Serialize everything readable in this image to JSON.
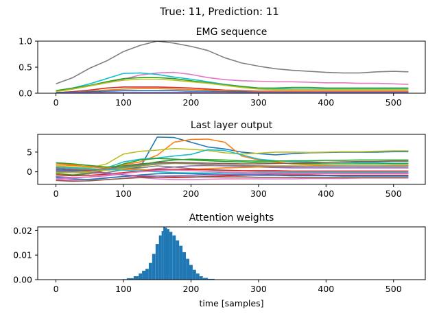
{
  "figure": {
    "suptitle": "True: 11, Prediction: 11",
    "xlabel": "time [samples]"
  },
  "chart_data": [
    {
      "type": "line",
      "title": "EMG sequence",
      "xlabel": "",
      "ylabel": "",
      "xlim": [
        -27,
        547
      ],
      "ylim": [
        0,
        1.0
      ],
      "xticks": [
        0,
        100,
        200,
        300,
        400,
        500
      ],
      "yticks": [
        0,
        0.5,
        1.0
      ],
      "ytick_labels": [
        "0.0",
        "0.5",
        "1.0"
      ],
      "grid": false,
      "x": [
        0,
        25,
        50,
        75,
        100,
        125,
        150,
        175,
        200,
        225,
        250,
        275,
        300,
        325,
        350,
        375,
        400,
        425,
        450,
        475,
        500,
        522
      ],
      "series": [
        {
          "color": "#7f7f7f",
          "values": [
            0.18,
            0.3,
            0.48,
            0.62,
            0.8,
            0.92,
            1.0,
            0.96,
            0.9,
            0.82,
            0.68,
            0.58,
            0.52,
            0.47,
            0.44,
            0.42,
            0.4,
            0.39,
            0.39,
            0.41,
            0.42,
            0.41
          ]
        },
        {
          "color": "#e377c2",
          "values": [
            0.03,
            0.08,
            0.14,
            0.2,
            0.27,
            0.35,
            0.39,
            0.4,
            0.36,
            0.3,
            0.26,
            0.24,
            0.23,
            0.22,
            0.22,
            0.21,
            0.2,
            0.2,
            0.19,
            0.19,
            0.18,
            0.17
          ]
        },
        {
          "color": "#17becf",
          "values": [
            0.04,
            0.1,
            0.18,
            0.28,
            0.38,
            0.39,
            0.36,
            0.31,
            0.27,
            0.22,
            0.17,
            0.13,
            0.1,
            0.09,
            0.08,
            0.08,
            0.08,
            0.08,
            0.08,
            0.08,
            0.08,
            0.08
          ]
        },
        {
          "color": "#2ca02c",
          "values": [
            0.05,
            0.1,
            0.15,
            0.22,
            0.28,
            0.3,
            0.3,
            0.28,
            0.24,
            0.2,
            0.16,
            0.13,
            0.1,
            0.1,
            0.11,
            0.11,
            0.1,
            0.1,
            0.1,
            0.1,
            0.1,
            0.1
          ]
        },
        {
          "color": "#bcbd22",
          "values": [
            0.03,
            0.08,
            0.14,
            0.2,
            0.25,
            0.27,
            0.27,
            0.25,
            0.22,
            0.19,
            0.15,
            0.11,
            0.08,
            0.07,
            0.07,
            0.07,
            0.07,
            0.07,
            0.07,
            0.07,
            0.07,
            0.07
          ]
        },
        {
          "color": "#d62728",
          "values": [
            0.01,
            0.03,
            0.06,
            0.1,
            0.12,
            0.12,
            0.12,
            0.11,
            0.1,
            0.08,
            0.06,
            0.05,
            0.04,
            0.04,
            0.04,
            0.04,
            0.04,
            0.04,
            0.04,
            0.04,
            0.04,
            0.04
          ]
        },
        {
          "color": "#ff7f0e",
          "values": [
            0.01,
            0.02,
            0.04,
            0.06,
            0.08,
            0.09,
            0.09,
            0.08,
            0.07,
            0.06,
            0.05,
            0.04,
            0.03,
            0.03,
            0.03,
            0.03,
            0.03,
            0.03,
            0.03,
            0.03,
            0.03,
            0.03
          ]
        },
        {
          "color": "#1f77b4",
          "values": [
            0.01,
            0.02,
            0.03,
            0.04,
            0.05,
            0.05,
            0.05,
            0.05,
            0.04,
            0.04,
            0.03,
            0.03,
            0.02,
            0.02,
            0.02,
            0.02,
            0.02,
            0.02,
            0.02,
            0.02,
            0.02,
            0.02
          ]
        },
        {
          "color": "#9467bd",
          "values": [
            0.0,
            0.01,
            0.01,
            0.02,
            0.02,
            0.02,
            0.02,
            0.02,
            0.02,
            0.02,
            0.02,
            0.01,
            0.01,
            0.01,
            0.01,
            0.01,
            0.01,
            0.01,
            0.01,
            0.01,
            0.01,
            0.01
          ]
        }
      ]
    },
    {
      "type": "line",
      "title": "Last layer output",
      "xlabel": "",
      "ylabel": "",
      "xlim": [
        -27,
        547
      ],
      "ylim": [
        -3.2,
        9.5
      ],
      "xticks": [
        0,
        100,
        200,
        300,
        400,
        500
      ],
      "yticks": [
        0,
        5
      ],
      "ytick_labels": [
        "0",
        "5"
      ],
      "grid": false,
      "x": [
        0,
        25,
        50,
        75,
        100,
        125,
        150,
        175,
        200,
        225,
        250,
        275,
        300,
        325,
        350,
        375,
        400,
        425,
        450,
        475,
        500,
        522
      ],
      "series": [
        {
          "color": "#1f77b4",
          "values": [
            0.5,
            0.3,
            0.2,
            0.4,
            0.8,
            1.2,
            8.8,
            8.7,
            7.5,
            6.3,
            5.8,
            5.0,
            4.6,
            4.3,
            4.6,
            4.8,
            4.9,
            5.0,
            5.0,
            5.0,
            5.1,
            5.1
          ]
        },
        {
          "color": "#ff7f0e",
          "values": [
            2.2,
            1.8,
            1.2,
            1.0,
            1.8,
            2.5,
            4.2,
            7.5,
            8.2,
            8.3,
            7.5,
            4.0,
            3.0,
            2.5,
            2.0,
            1.8,
            1.6,
            1.5,
            1.4,
            1.4,
            1.4,
            1.4
          ]
        },
        {
          "color": "#bcbd22",
          "values": [
            1.5,
            1.2,
            1.0,
            2.0,
            4.5,
            5.2,
            5.5,
            5.9,
            5.7,
            5.4,
            4.8,
            4.5,
            4.7,
            5.0,
            5.0,
            4.9,
            5.0,
            5.1,
            5.1,
            5.2,
            5.3,
            5.3
          ]
        },
        {
          "color": "#17becf",
          "values": [
            0.2,
            0.0,
            0.3,
            1.0,
            2.5,
            3.2,
            3.5,
            4.0,
            4.4,
            5.6,
            5.4,
            4.3,
            3.2,
            2.8,
            2.6,
            2.5,
            2.4,
            2.4,
            2.3,
            2.3,
            2.2,
            2.2
          ]
        },
        {
          "color": "#2ca02c",
          "values": [
            -0.5,
            -0.8,
            -0.5,
            0.5,
            2.0,
            3.0,
            3.4,
            3.2,
            3.0,
            2.8,
            2.6,
            2.5,
            2.3,
            2.2,
            2.1,
            2.1,
            2.0,
            2.0,
            2.0,
            2.0,
            2.0,
            2.0
          ]
        },
        {
          "color": "#d62728",
          "values": [
            1.0,
            0.6,
            0.2,
            -0.3,
            -0.8,
            -1.2,
            -1.4,
            -1.5,
            -1.4,
            -1.2,
            -1.0,
            -0.9,
            -0.8,
            -0.8,
            -0.8,
            -0.8,
            -0.9,
            -0.9,
            -0.9,
            -0.9,
            -0.9,
            -0.9
          ]
        },
        {
          "color": "#9467bd",
          "values": [
            -1.2,
            -1.5,
            -1.3,
            -1.0,
            -0.5,
            0.2,
            0.8,
            1.2,
            1.5,
            1.6,
            1.5,
            1.4,
            1.2,
            1.1,
            1.0,
            1.0,
            1.0,
            1.0,
            1.0,
            1.0,
            1.0,
            1.0
          ]
        },
        {
          "color": "#8c564b",
          "values": [
            0.8,
            0.5,
            0.4,
            0.8,
            1.5,
            2.0,
            2.3,
            2.4,
            2.3,
            2.2,
            2.1,
            2.0,
            2.0,
            2.1,
            2.2,
            2.3,
            2.4,
            2.5,
            2.6,
            2.6,
            2.7,
            2.7
          ]
        },
        {
          "color": "#e377c2",
          "values": [
            -2.0,
            -2.1,
            -1.9,
            -1.5,
            -1.2,
            -1.5,
            -1.8,
            -2.0,
            -2.0,
            -1.9,
            -1.8,
            -1.8,
            -1.8,
            -1.8,
            -1.8,
            -1.7,
            -1.7,
            -1.7,
            -1.6,
            -1.6,
            -1.6,
            -1.6
          ]
        },
        {
          "color": "#7f7f7f",
          "values": [
            0.0,
            -0.2,
            -0.4,
            -0.2,
            0.5,
            1.0,
            1.5,
            1.2,
            0.8,
            0.5,
            0.3,
            0.2,
            0.1,
            0.1,
            0.1,
            0.1,
            0.1,
            0.1,
            0.1,
            0.1,
            0.1,
            0.1
          ]
        },
        {
          "color": "#1f77b4",
          "values": [
            -1.5,
            -1.8,
            -2.0,
            -1.6,
            -1.2,
            -0.8,
            -0.5,
            -0.4,
            -0.5,
            -0.6,
            -0.7,
            -0.8,
            -0.9,
            -0.9,
            -1.0,
            -1.0,
            -1.0,
            -1.1,
            -1.1,
            -1.1,
            -1.1,
            -1.1
          ]
        },
        {
          "color": "#ff7f0e",
          "values": [
            1.8,
            1.6,
            1.3,
            1.0,
            0.7,
            0.5,
            0.4,
            0.5,
            0.6,
            0.8,
            1.0,
            1.1,
            1.2,
            1.3,
            1.3,
            1.4,
            1.4,
            1.5,
            1.5,
            1.5,
            1.6,
            1.6
          ]
        },
        {
          "color": "#2ca02c",
          "values": [
            2.3,
            2.0,
            1.6,
            1.2,
            1.4,
            1.8,
            2.5,
            3.0,
            3.2,
            3.1,
            3.0,
            2.8,
            2.7,
            2.7,
            2.8,
            2.8,
            2.9,
            2.9,
            3.0,
            3.0,
            3.0,
            3.0
          ]
        },
        {
          "color": "#d62728",
          "values": [
            -0.8,
            -1.0,
            -0.9,
            -0.6,
            -0.2,
            0.2,
            0.5,
            0.6,
            0.6,
            0.5,
            0.4,
            0.3,
            0.3,
            0.3,
            0.2,
            0.2,
            0.2,
            0.2,
            0.2,
            0.2,
            0.2,
            0.2
          ]
        },
        {
          "color": "#9467bd",
          "values": [
            0.3,
            0.1,
            -0.1,
            -0.4,
            -0.8,
            -1.0,
            -1.1,
            -1.0,
            -0.9,
            -0.8,
            -0.7,
            -0.6,
            -0.6,
            -0.5,
            -0.5,
            -0.5,
            -0.5,
            -0.5,
            -0.5,
            -0.5,
            -0.5,
            -0.5
          ]
        },
        {
          "color": "#bcbd22",
          "values": [
            -0.3,
            -0.2,
            0.0,
            0.4,
            0.9,
            1.4,
            1.9,
            2.1,
            2.0,
            1.8,
            1.7,
            1.6,
            1.5,
            1.5,
            1.5,
            1.5,
            1.5,
            1.5,
            1.5,
            1.5,
            1.5,
            1.5
          ]
        },
        {
          "color": "#17becf",
          "values": [
            1.2,
            1.0,
            0.8,
            0.6,
            0.4,
            0.2,
            0.0,
            -0.2,
            -0.3,
            -0.3,
            -0.3,
            -0.3,
            -0.2,
            -0.2,
            -0.2,
            -0.2,
            -0.2,
            -0.2,
            -0.2,
            -0.2,
            -0.2,
            -0.2
          ]
        },
        {
          "color": "#e377c2",
          "values": [
            -1.8,
            -1.6,
            -1.3,
            -0.9,
            -0.4,
            0.0,
            0.3,
            0.4,
            0.3,
            0.1,
            -0.1,
            -0.2,
            -0.3,
            -0.3,
            -0.4,
            -0.4,
            -0.4,
            -0.4,
            -0.4,
            -0.4,
            -0.4,
            -0.4
          ]
        },
        {
          "color": "#8c564b",
          "values": [
            -2.2,
            -2.4,
            -2.3,
            -2.0,
            -1.7,
            -1.5,
            -1.4,
            -1.3,
            -1.3,
            -1.3,
            -1.3,
            -1.3,
            -1.4,
            -1.4,
            -1.4,
            -1.5,
            -1.5,
            -1.5,
            -1.5,
            -1.5,
            -1.5,
            -1.5
          ]
        },
        {
          "color": "#7f7f7f",
          "values": [
            0.9,
            0.7,
            0.5,
            0.7,
            1.1,
            1.6,
            2.0,
            2.2,
            2.1,
            1.9,
            1.7,
            1.6,
            1.5,
            1.4,
            1.4,
            1.4,
            1.4,
            1.4,
            1.4,
            1.4,
            1.4,
            1.4
          ]
        }
      ]
    },
    {
      "type": "bar",
      "title": "Attention weights",
      "xlabel": "time [samples]",
      "ylabel": "",
      "xlim": [
        -27,
        547
      ],
      "ylim": [
        0,
        0.0215
      ],
      "xticks": [
        0,
        100,
        200,
        300,
        400,
        500
      ],
      "yticks": [
        0,
        0.01,
        0.02
      ],
      "ytick_labels": [
        "0.00",
        "0.01",
        "0.02"
      ],
      "grid": false,
      "bar_color": "#1f77b4",
      "x": [
        100,
        110,
        120,
        125,
        130,
        135,
        140,
        145,
        150,
        155,
        158,
        160,
        163,
        166,
        170,
        175,
        180,
        185,
        190,
        195,
        200,
        205,
        210,
        215,
        220,
        230,
        240
      ],
      "values": [
        0.0002,
        0.0006,
        0.0014,
        0.0025,
        0.0036,
        0.0044,
        0.0068,
        0.0105,
        0.0145,
        0.018,
        0.0198,
        0.0215,
        0.0212,
        0.0206,
        0.0195,
        0.018,
        0.016,
        0.0138,
        0.0112,
        0.0085,
        0.006,
        0.004,
        0.0025,
        0.0014,
        0.0007,
        0.0003,
        0.0001
      ]
    }
  ]
}
